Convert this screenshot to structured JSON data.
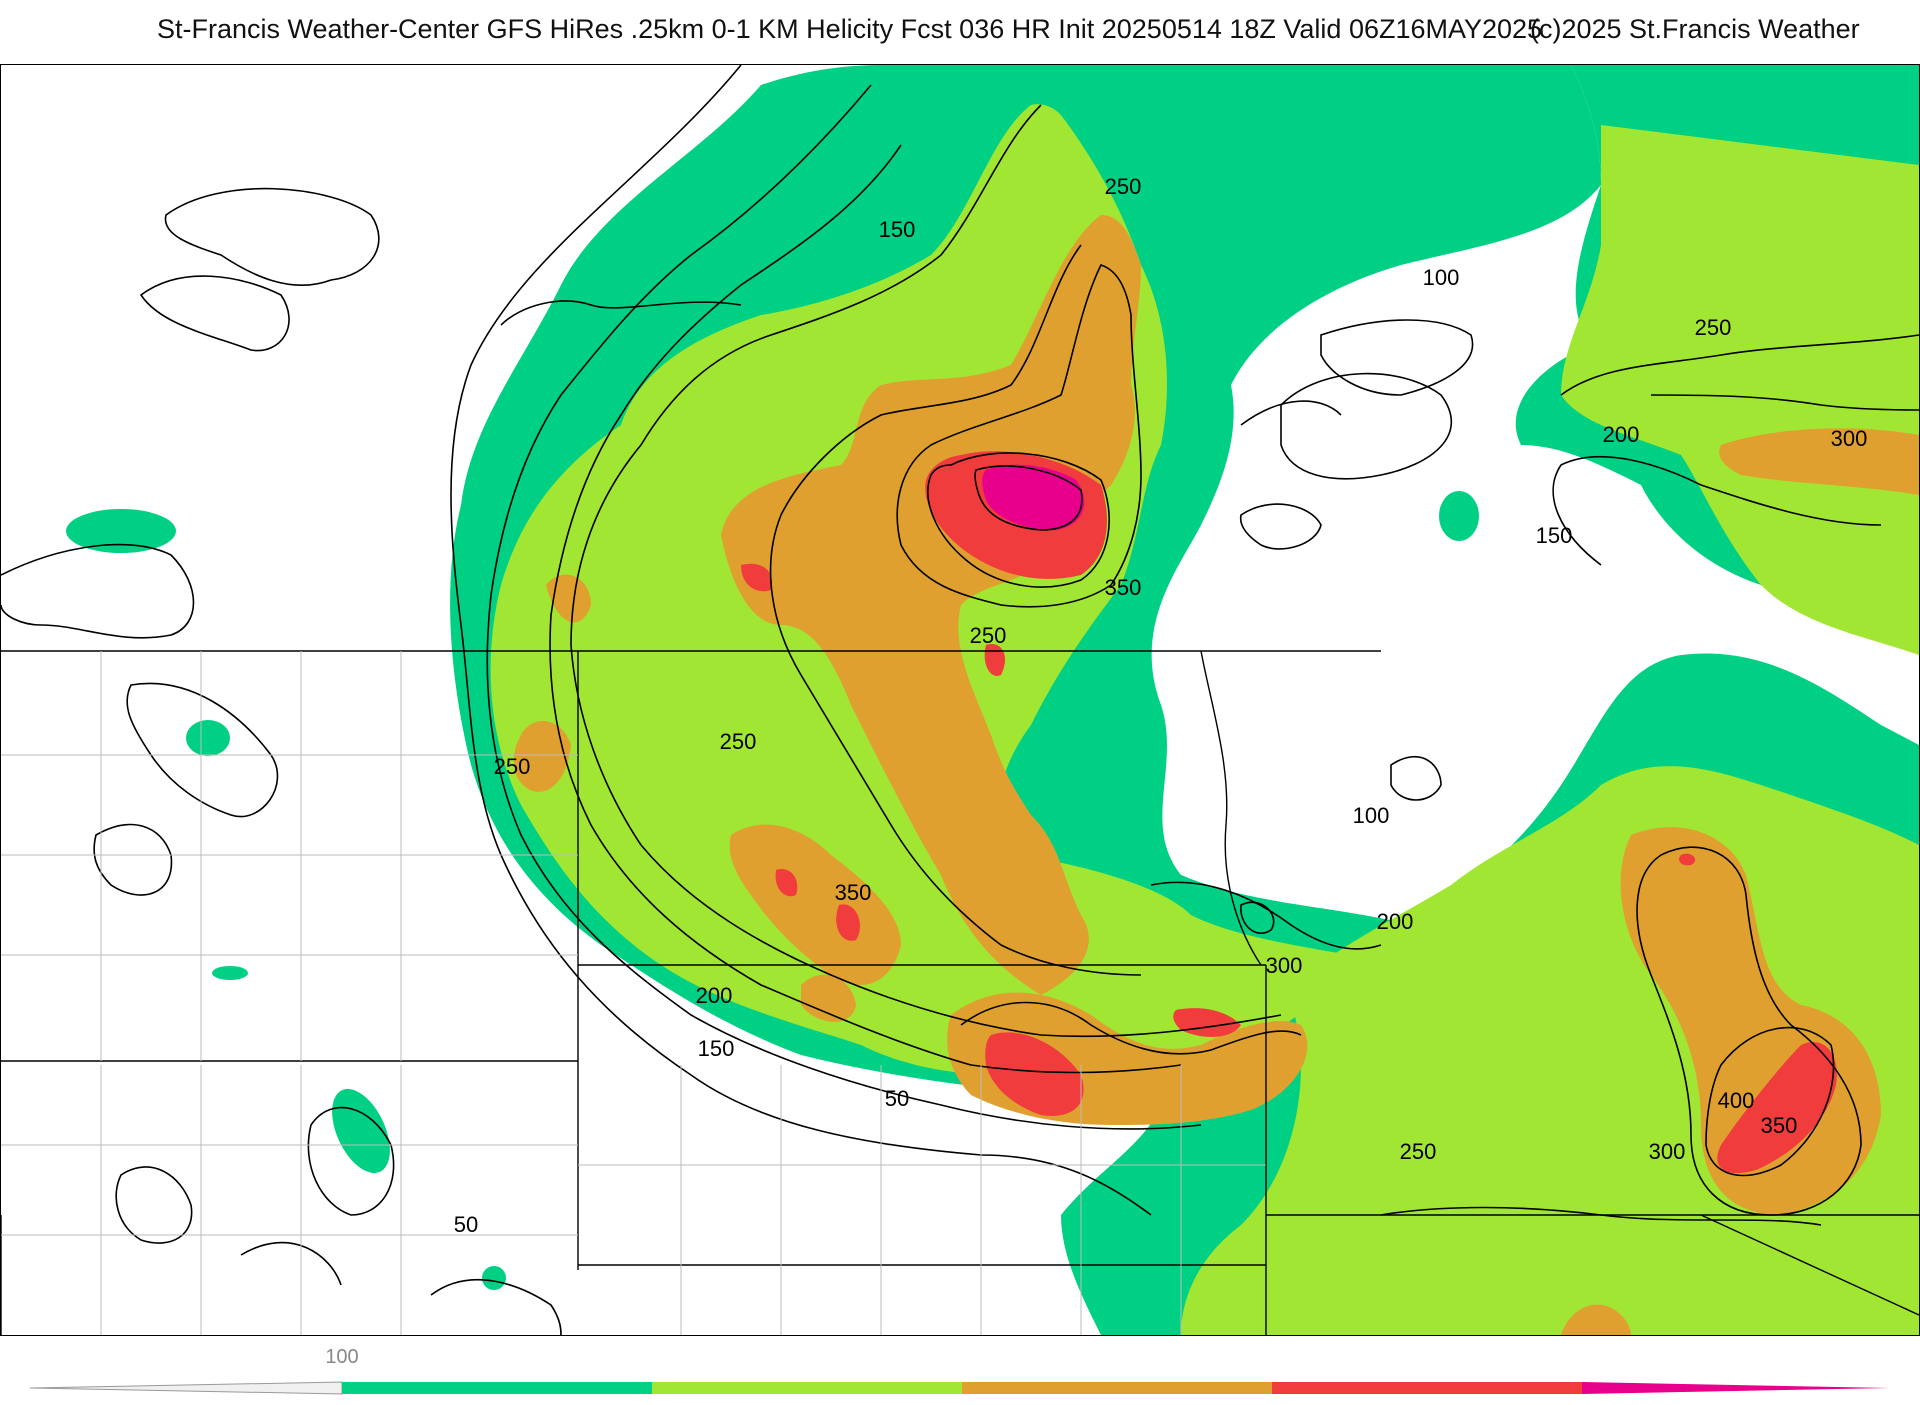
{
  "title": {
    "main": "St-Francis Weather-Center GFS HiRes .25km 0-1 KM Helicity Fcst 036 HR Init 20250514 18Z  Valid 06Z16MAY2025",
    "credit": "(c)2025 St.Francis Weather"
  },
  "colorbar": {
    "start_label": "100",
    "colors": [
      "#00d084",
      "#a0e632",
      "#e0a030",
      "#f03c3c",
      "#e8008c"
    ]
  },
  "fill_colors": {
    "c100": "#00d084",
    "c200": "#a0e632",
    "c300": "#e0a030",
    "c400": "#f03c3c",
    "c500": "#e8008c"
  },
  "contour_labels": [
    {
      "text": "250"
    },
    {
      "text": "150"
    },
    {
      "text": "100"
    },
    {
      "text": "250"
    },
    {
      "text": "200"
    },
    {
      "text": "300"
    },
    {
      "text": "150"
    },
    {
      "text": "350"
    },
    {
      "text": "250"
    },
    {
      "text": "250"
    },
    {
      "text": "250"
    },
    {
      "text": "100"
    },
    {
      "text": "350"
    },
    {
      "text": "200"
    },
    {
      "text": "300"
    },
    {
      "text": "200"
    },
    {
      "text": "150"
    },
    {
      "text": "50"
    },
    {
      "text": "250"
    },
    {
      "text": "300"
    },
    {
      "text": "400"
    },
    {
      "text": "350"
    },
    {
      "text": "50"
    }
  ]
}
